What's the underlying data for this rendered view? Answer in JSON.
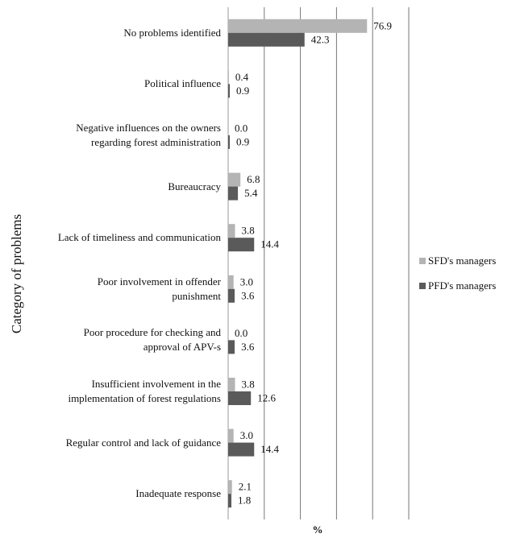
{
  "chart_data": {
    "type": "bar",
    "orientation": "horizontal",
    "x_label": "%",
    "y_label": "Category of problems",
    "categories": [
      "No problems identified",
      "Political influence",
      "Negative influences on the owners\nregarding forest administration",
      "Bureaucracy",
      "Lack of timeliness and communication",
      "Poor involvement in offender\npunishment",
      "Poor procedure for checking and\napproval of APV-s",
      "Insufficient involvement in the\nimplementation of forest regulations",
      "Regular control and lack of guidance",
      "Inadequate response"
    ],
    "series": [
      {
        "name": "SFD's managers",
        "color": "#b4b4b4",
        "values": [
          76.9,
          0.4,
          0,
          6.8,
          3.8,
          3,
          0,
          3.8,
          3,
          2.1
        ],
        "value_labels": [
          "76.9",
          "0.4",
          "0.0",
          "6.8",
          "3.8",
          "3.0",
          "0.0",
          "3.8",
          "3.0",
          "2.1"
        ]
      },
      {
        "name": "PFD's managers",
        "color": "#5a5a5a",
        "values": [
          42.3,
          0.9,
          0.9,
          5.4,
          14.4,
          3.6,
          3.6,
          12.6,
          14.4,
          1.8
        ]
      }
    ],
    "xlim": [
      0,
      100
    ],
    "xticks": [
      0,
      20,
      40,
      60,
      80,
      100
    ],
    "grid": true,
    "legend": "right"
  }
}
